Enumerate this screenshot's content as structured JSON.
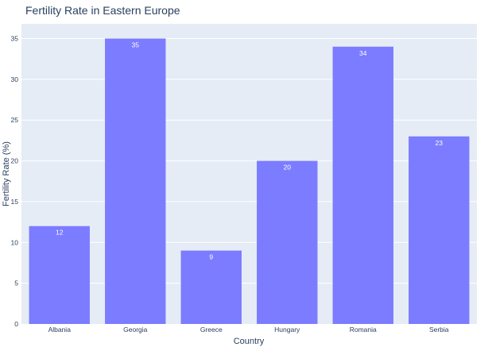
{
  "chart_data": {
    "type": "bar",
    "title": "Fertility Rate in Eastern Europe",
    "xlabel": "Country",
    "ylabel": "Fertility Rate (%)",
    "categories": [
      "Albania",
      "Georgia",
      "Greece",
      "Hungary",
      "Romania",
      "Serbia"
    ],
    "values": [
      12,
      35,
      9,
      20,
      34,
      23
    ],
    "ylim": [
      0,
      36.8
    ],
    "yticks": [
      0,
      5,
      10,
      15,
      20,
      25,
      30,
      35
    ],
    "grid": true,
    "data_labels": true,
    "colors": {
      "bar": "#7b7cff",
      "plot_background": "#e5ecf6",
      "gridline": "#ffffff",
      "text": "#2a3f5f"
    }
  }
}
